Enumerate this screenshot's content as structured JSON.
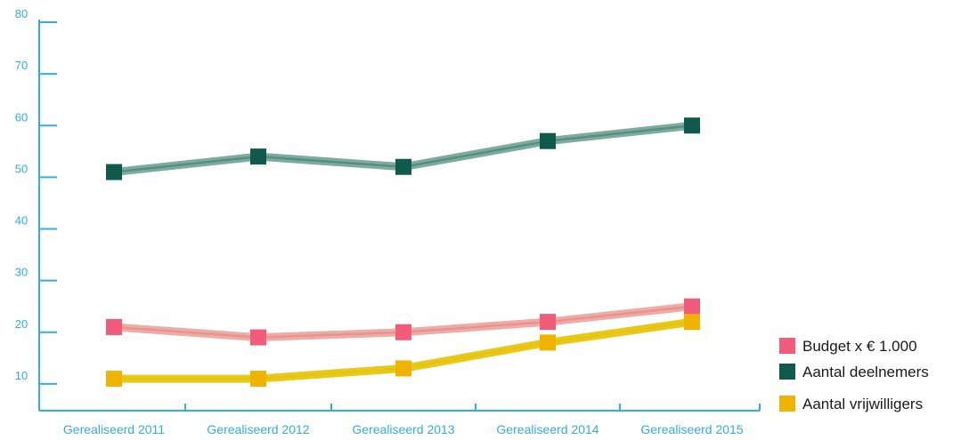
{
  "chart_data": {
    "type": "line",
    "categories": [
      "Gerealiseerd 2011",
      "Gerealiseerd 2012",
      "Gerealiseerd 2013",
      "Gerealiseerd 2014",
      "Gerealiseerd 2015"
    ],
    "ylim": [
      0,
      80
    ],
    "yticks": [
      10,
      20,
      30,
      40,
      50,
      60,
      70,
      80
    ],
    "grid": false,
    "legend_position": "bottom-right",
    "series": [
      {
        "name": "Budget x € 1.000",
        "color": "#f25c7a",
        "line_color": "#e9a49a",
        "values": [
          21,
          19,
          20,
          22,
          25
        ]
      },
      {
        "name": "Aantal deelnemers",
        "color": "#0f5a4c",
        "line_color": "#6fa392",
        "values": [
          51,
          54,
          52,
          57,
          60
        ]
      },
      {
        "name": "Aantal vrijwilligers",
        "color": "#f0b400",
        "line_color": "#e3c300",
        "values": [
          11,
          11,
          13,
          18,
          22
        ]
      }
    ],
    "axis_color": "#33aee0"
  }
}
